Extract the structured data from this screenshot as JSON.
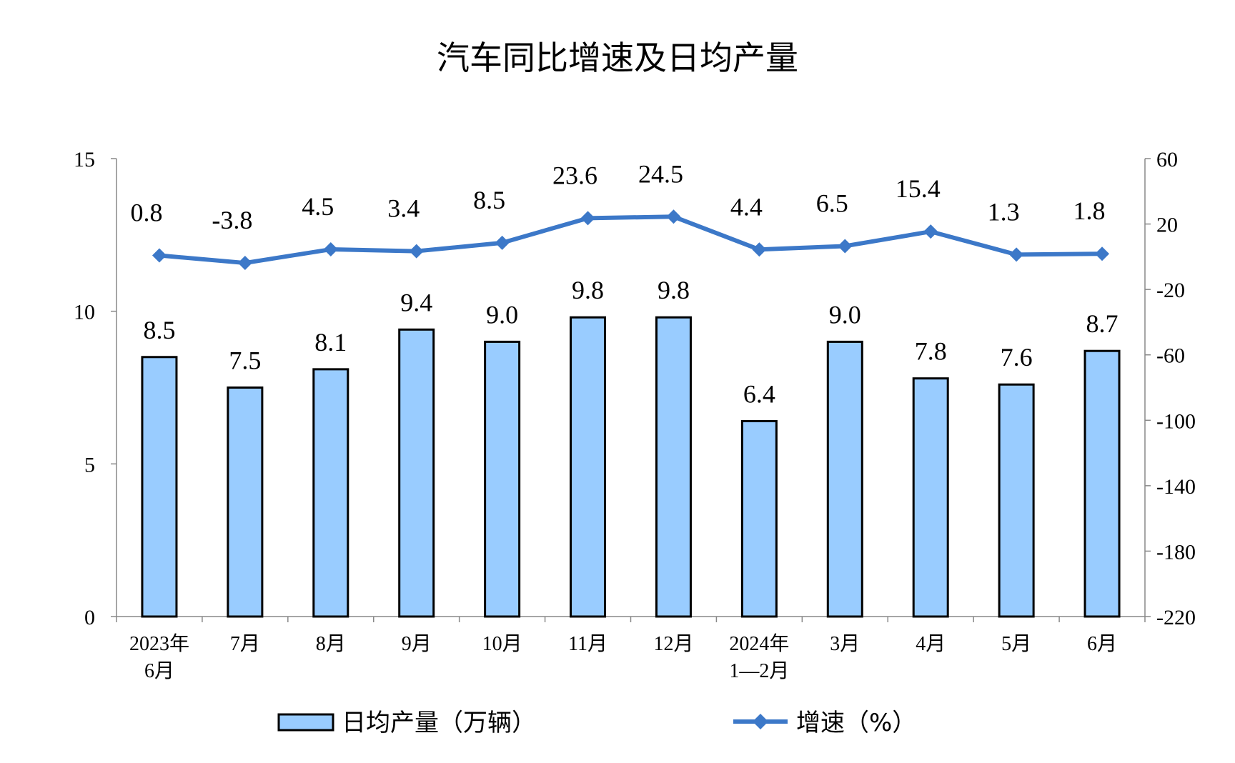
{
  "chart_data": {
    "type": "bar",
    "title": "汽车同比增速及日均产量",
    "categories": [
      [
        "2023年",
        "6月"
      ],
      [
        "7月"
      ],
      [
        "8月"
      ],
      [
        "9月"
      ],
      [
        "10月"
      ],
      [
        "11月"
      ],
      [
        "12月"
      ],
      [
        "2024年",
        "1—2月"
      ],
      [
        "3月"
      ],
      [
        "4月"
      ],
      [
        "5月"
      ],
      [
        "6月"
      ]
    ],
    "series": [
      {
        "name": "日均产量（万辆）",
        "kind": "bar",
        "axis": "left",
        "values": [
          8.5,
          7.5,
          8.1,
          9.4,
          9.0,
          9.8,
          9.8,
          6.4,
          9.0,
          7.8,
          7.6,
          8.7
        ],
        "labels": [
          "8.5",
          "7.5",
          "8.1",
          "9.4",
          "9.0",
          "9.8",
          "9.8",
          "6.4",
          "9.0",
          "7.8",
          "7.6",
          "8.7"
        ]
      },
      {
        "name": "增速（%）",
        "kind": "line",
        "axis": "right",
        "values": [
          0.8,
          -3.8,
          4.5,
          3.4,
          8.5,
          23.6,
          24.5,
          4.4,
          6.5,
          15.4,
          1.3,
          1.8
        ],
        "labels": [
          "0.8",
          "-3.8",
          "4.5",
          "3.4",
          "8.5",
          "23.6",
          "24.5",
          "4.4",
          "6.5",
          "15.4",
          "1.3",
          "1.8"
        ]
      }
    ],
    "y_left": {
      "range": [
        0,
        15
      ],
      "ticks": [
        "0",
        "5",
        "10",
        "15"
      ]
    },
    "y_right": {
      "range": [
        -220,
        60
      ],
      "ticks": [
        "60",
        "20",
        "-20",
        "-60",
        "-100",
        "-140",
        "-180",
        "-220"
      ]
    },
    "grid": false,
    "legend_position": "bottom",
    "colors": {
      "bar_fill": "#99ccff",
      "bar_stroke": "#000000",
      "line": "#3c78c8",
      "axis": "#888888"
    }
  }
}
